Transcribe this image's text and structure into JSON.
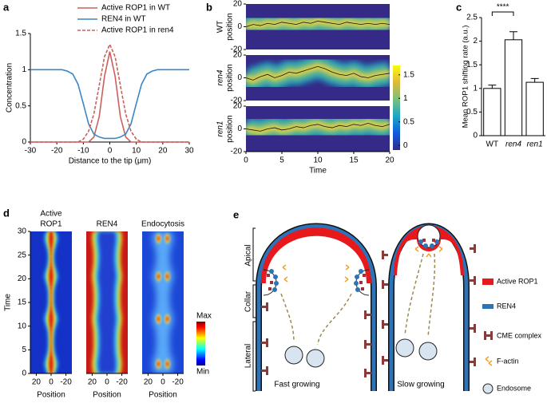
{
  "chart_data": [
    {
      "panel": "a",
      "type": "line",
      "xlabel": "Distance to the tip (μm)",
      "ylabel": "Concentration",
      "x": [
        -30,
        -28,
        -26,
        -24,
        -22,
        -20,
        -18,
        -16,
        -14,
        -12,
        -10,
        -8,
        -6,
        -4,
        -2,
        0,
        2,
        4,
        6,
        8,
        10,
        12,
        14,
        16,
        18,
        20,
        22,
        24,
        26,
        28,
        30
      ],
      "series": [
        {
          "name": "Active ROP1 in WT",
          "color": "#c9605a",
          "line_style": "solid",
          "values": [
            0,
            0,
            0,
            0,
            0,
            0,
            0,
            0,
            0,
            0,
            0,
            0,
            0.07,
            0.35,
            0.91,
            1.25,
            0.91,
            0.35,
            0.07,
            0,
            0,
            0,
            0,
            0,
            0,
            0,
            0,
            0,
            0,
            0,
            0
          ]
        },
        {
          "name": "REN4 in WT",
          "color": "#3a87c8",
          "line_style": "solid",
          "values": [
            1,
            1,
            1,
            1,
            1,
            1,
            1,
            0.98,
            0.94,
            0.8,
            0.53,
            0.25,
            0.11,
            0.07,
            0.05,
            0.05,
            0.05,
            0.07,
            0.11,
            0.25,
            0.53,
            0.8,
            0.94,
            0.98,
            1,
            1,
            1,
            1,
            1,
            1,
            1
          ]
        },
        {
          "name": "Active ROP1 in ren4",
          "color": "#c9605a",
          "line_style": "dashed",
          "values": [
            0,
            0,
            0,
            0,
            0,
            0,
            0,
            0,
            0,
            0,
            0.04,
            0.15,
            0.39,
            0.78,
            1.18,
            1.35,
            1.18,
            0.78,
            0.39,
            0.15,
            0.04,
            0,
            0,
            0,
            0,
            0,
            0,
            0,
            0,
            0,
            0
          ]
        }
      ],
      "xlim": [
        -30,
        30
      ],
      "xticks": [
        -30,
        -20,
        -10,
        0,
        10,
        20,
        30
      ],
      "ylim": [
        0,
        1.5
      ],
      "yticks": [
        0,
        0.5,
        1,
        1.5
      ],
      "legend": "upper center"
    },
    {
      "panel": "b",
      "type": "kymograph",
      "xlabel": "Time",
      "colormap": "parula",
      "x": [
        0,
        1,
        2,
        3,
        4,
        5,
        6,
        7,
        8,
        9,
        10,
        11,
        12,
        13,
        14,
        15,
        16,
        17,
        18,
        19,
        20
      ],
      "xlim": [
        0,
        20
      ],
      "xticks": [
        0,
        5,
        10,
        15,
        20
      ],
      "ylim": [
        -20,
        20
      ],
      "yticks": [
        -20,
        0,
        20
      ],
      "facets": [
        {
          "ylabel": [
            "WT",
            "position"
          ],
          "values": [
            0,
            2,
            1,
            3,
            2,
            4,
            3,
            2,
            4,
            3,
            5,
            4,
            3,
            2,
            4,
            3,
            2,
            3,
            2,
            3,
            2
          ]
        },
        {
          "ylabel": [
            "ren4",
            "position"
          ],
          "values": [
            0,
            -2,
            1,
            3,
            0,
            2,
            5,
            4,
            6,
            8,
            10,
            8,
            5,
            3,
            2,
            4,
            1,
            0,
            2,
            3,
            4
          ]
        },
        {
          "ylabel": [
            "ren1",
            "position"
          ],
          "values": [
            0,
            -1,
            -2,
            0,
            1,
            -1,
            0,
            2,
            1,
            3,
            4,
            2,
            1,
            3,
            2,
            4,
            3,
            5,
            3,
            2,
            4
          ]
        }
      ],
      "colorbar": {
        "lim": [
          -0.1,
          1.7
        ],
        "ticks": [
          0,
          0.5,
          1,
          1.5
        ]
      }
    },
    {
      "panel": "c",
      "type": "bar",
      "ylabel": "Mean ROP1 shifting rate (a.u.)",
      "categories": [
        "WT",
        "ren4",
        "ren1"
      ],
      "values": [
        1.0,
        2.03,
        1.13
      ],
      "errors": [
        0.07,
        0.17,
        0.08
      ],
      "color": "#ffffff",
      "edgecolor": "#000000",
      "ylim": [
        0,
        2.5
      ],
      "yticks": [
        0,
        0.5,
        1,
        1.5,
        2,
        2.5
      ],
      "annotation": "****"
    },
    {
      "panel": "d",
      "type": "heatmap",
      "ylabel": "Time",
      "xlabel": "Position",
      "colormap": "jet",
      "ylim": [
        0,
        30
      ],
      "yticks": [
        0,
        5,
        10,
        15,
        20,
        25,
        30
      ],
      "xlim": [
        28,
        -28
      ],
      "xticks": [
        20,
        0,
        -20
      ],
      "facets": [
        {
          "title": [
            "Active",
            "ROP1"
          ]
        },
        {
          "title": [
            "REN4"
          ]
        },
        {
          "title": [
            "Endocytosis"
          ]
        }
      ],
      "colorbar": {
        "max_label": "Max",
        "min_label": "Min"
      }
    }
  ],
  "diagram": {
    "panel": "e",
    "regions": [
      "Apical",
      "Collar",
      "Lateral"
    ],
    "cells": [
      "Fast growing",
      "Slow growing"
    ],
    "legend": [
      "Active ROP1",
      "REN4",
      "CME complex",
      "F-actin",
      "Endosome"
    ]
  }
}
